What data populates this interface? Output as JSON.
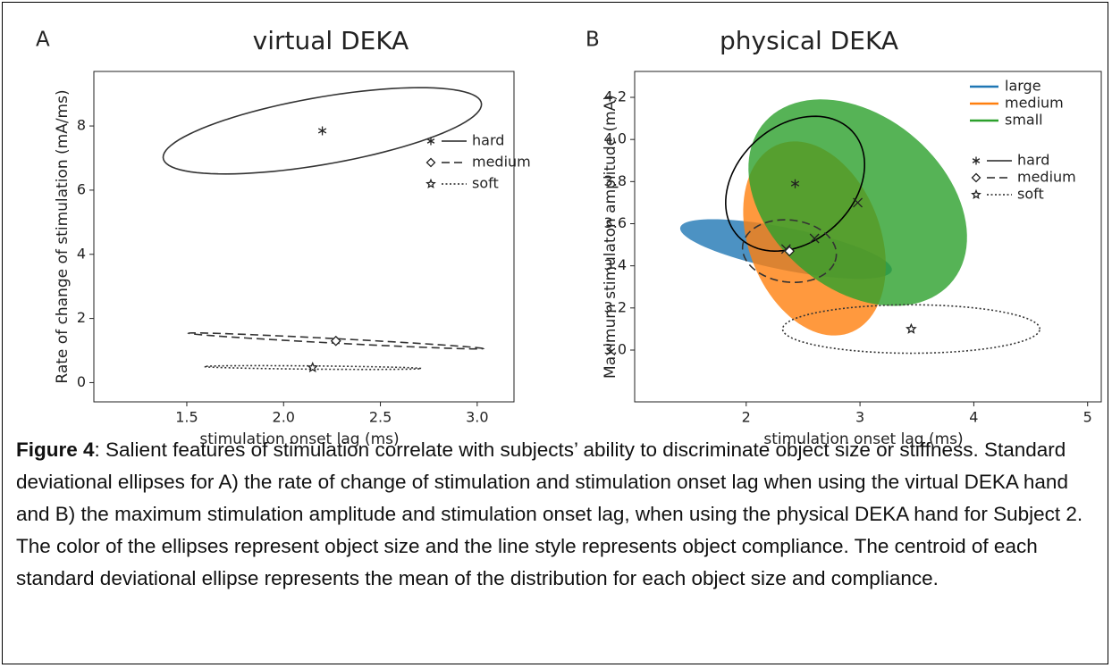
{
  "chart_data": [
    {
      "type": "ellipse",
      "panel": "A",
      "title": "virtual DEKA",
      "xlabel": "stimulation onset lag (ms)",
      "ylabel": "Rate of change of stimulation (mA/ms)",
      "xlim": [
        1.02,
        3.19
      ],
      "xticks": [
        1.5,
        {
          "value": 2,
          "label": "2.0"
        },
        2.5,
        {
          "value": 3,
          "label": "3.0"
        }
      ],
      "ylim": [
        -0.6,
        9.7
      ],
      "yticks": [
        0,
        2,
        4,
        6,
        8
      ],
      "legend": "center right",
      "series": [
        {
          "name": "hard",
          "color": "#333333",
          "fill": false,
          "linestyle": "solid",
          "marker": "asterisk",
          "x": 2.2,
          "y": 7.85,
          "axis1": [
            0.82,
            0.9
          ],
          "axis2": [
            -0.06,
            1.0
          ]
        },
        {
          "name": "medium",
          "color": "#333333",
          "fill": false,
          "linestyle": "dashed",
          "marker": "diamond",
          "x": 2.27,
          "y": 1.3,
          "axis1": [
            0.76,
            -0.24
          ],
          "axis2": [
            0,
            0.07
          ]
        },
        {
          "name": "soft",
          "color": "#333333",
          "fill": false,
          "linestyle": "dotted",
          "marker": "star",
          "x": 2.15,
          "y": 0.47,
          "axis1": [
            0.56,
            -0.03
          ],
          "axis2": [
            0,
            0.05
          ]
        }
      ]
    },
    {
      "type": "ellipse",
      "panel": "B",
      "title": "physical DEKA",
      "xlabel": "stimulation onset lag (ms)",
      "ylabel": "Maximum stimulaton amplitude (mA)",
      "xlim": [
        1.02,
        5.12
      ],
      "xticks": [
        2,
        3,
        4,
        5
      ],
      "ylim": [
        2.754,
        4.323
      ],
      "yticks": [
        {
          "value": 3,
          "label": "3.0"
        },
        3.2,
        3.4,
        3.6,
        3.8,
        {
          "value": 4,
          "label": "4.0"
        },
        4.2
      ],
      "legend": "upper right",
      "series": [
        {
          "name": "large",
          "color": "#1f77b4",
          "fill": true,
          "linestyle": "solid",
          "marker": "x",
          "x": 2.35,
          "y": 3.48,
          "axis1": [
            0.93,
            -0.1
          ],
          "axis2": [
            0.02,
            0.1
          ]
        },
        {
          "name": "medium",
          "color": "#ff7f0e",
          "fill": true,
          "linestyle": "solid",
          "marker": "x",
          "x": 2.6,
          "y": 3.53,
          "axis1": [
            0.3,
            -0.45
          ],
          "axis2": [
            0.55,
            0.1
          ]
        },
        {
          "name": "small",
          "color": "#2ca02c",
          "fill": true,
          "linestyle": "solid",
          "marker": "x",
          "x": 2.98,
          "y": 3.7,
          "axis1": [
            0.5,
            -0.48
          ],
          "axis2": [
            0.82,
            0.1
          ]
        },
        {
          "name": "hard",
          "color": "#000000",
          "fill": false,
          "linestyle": "solid",
          "marker": "asterisk",
          "x": 2.43,
          "y": 3.79,
          "axis1": [
            0.5,
            0.25
          ],
          "axis2": [
            -0.35,
            0.2
          ]
        },
        {
          "name": "medium",
          "color": "#333333",
          "fill": false,
          "linestyle": "dashed",
          "marker": "diamond",
          "x": 2.38,
          "y": 3.47,
          "axis1": [
            0.4,
            -0.05
          ],
          "axis2": [
            0.1,
            0.14
          ]
        },
        {
          "name": "soft",
          "color": "#333333",
          "fill": false,
          "linestyle": "dotted",
          "marker": "star",
          "x": 3.45,
          "y": 3.1,
          "axis1": [
            1.13,
            0
          ],
          "axis2": [
            0,
            0.115
          ]
        }
      ]
    }
  ],
  "caption": {
    "label": "Figure 4",
    "text": ": Salient features of stimulation correlate with subjects’ ability to discriminate object size or stiffness. Standard deviational ellipses for A) the rate of change of stimulation and stimulation onset lag when using the virtual DEKA hand and B) the maximum stimulation amplitude and stimulation onset lag, when using the physical DEKA hand for Subject 2. The color of the ellipses represent object size and the line style represents object compliance. The centroid of each standard deviational ellipse represents the mean of the distribution for each object size and compliance."
  }
}
